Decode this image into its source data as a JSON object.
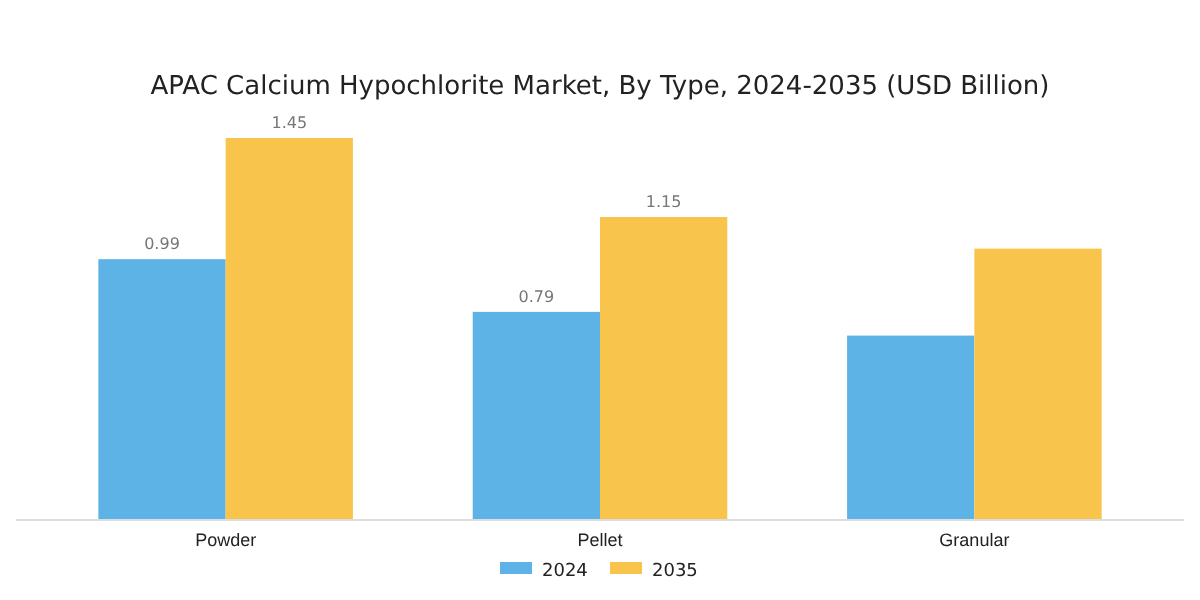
{
  "chart_data": {
    "type": "bar",
    "title": "APAC Calcium Hypochlorite Market, By Type, 2024-2035 (USD Billion)",
    "categories": [
      "Powder",
      "Pellet",
      "Granular"
    ],
    "series": [
      {
        "name": "2024",
        "color": "#5db3e6",
        "values": [
          0.99,
          0.79,
          0.7
        ],
        "value_labels": [
          "0.99",
          "0.79",
          null
        ]
      },
      {
        "name": "2035",
        "color": "#f8c44c",
        "values": [
          1.45,
          1.15,
          1.03
        ],
        "value_labels": [
          "1.45",
          "1.15",
          null
        ]
      }
    ],
    "legend": "bottom",
    "grid": false
  }
}
